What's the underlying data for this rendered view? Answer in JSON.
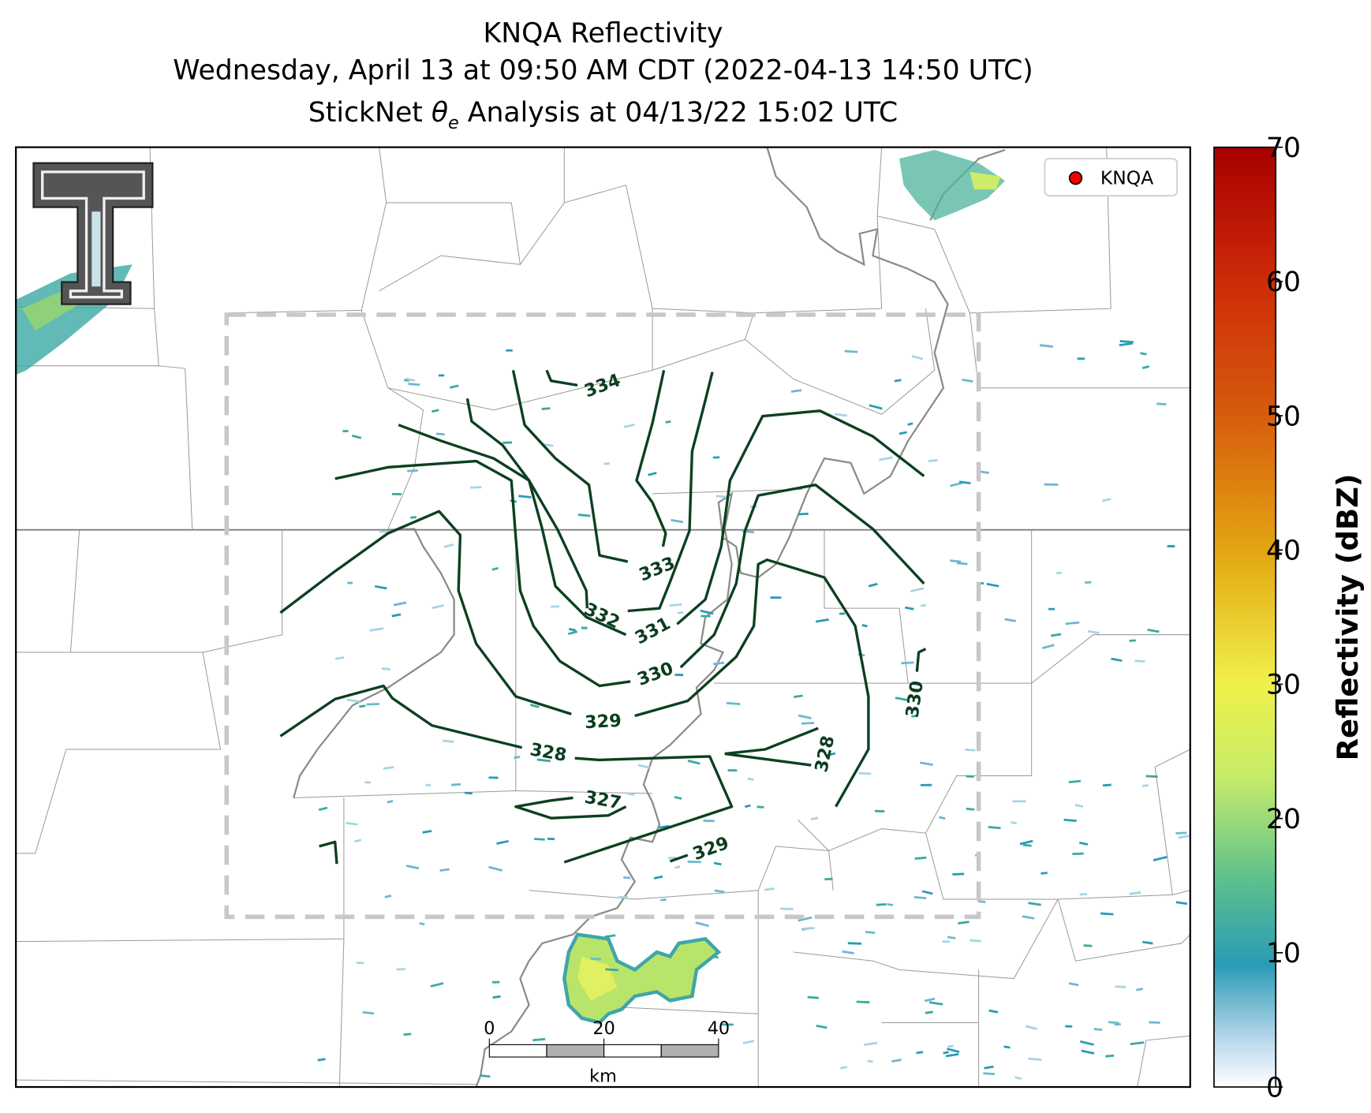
{
  "header": {
    "title_line_1": "KNQA Reflectivity",
    "title_line_2": "Wednesday, April 13 at 09:50 AM CDT (2022-04-13 14:50 UTC)",
    "title_line_3": {
      "before": "StickNet ",
      "symbol": "θ",
      "subscript": "e",
      "after": " Analysis at 04/13/22 15:02 UTC"
    }
  },
  "legend": {
    "label": "KNQA"
  },
  "contour_labels": [
    334,
    333,
    332,
    331,
    330,
    329,
    328,
    327,
    328,
    330,
    329
  ],
  "scale_bar": {
    "ticks": [
      0,
      20,
      40
    ],
    "unit": "km"
  },
  "colorbar": {
    "label": "Reflectivity (dBZ)",
    "lim": [
      0,
      70
    ],
    "ticks": [
      0,
      10,
      20,
      30,
      40,
      50,
      60,
      70
    ]
  }
}
